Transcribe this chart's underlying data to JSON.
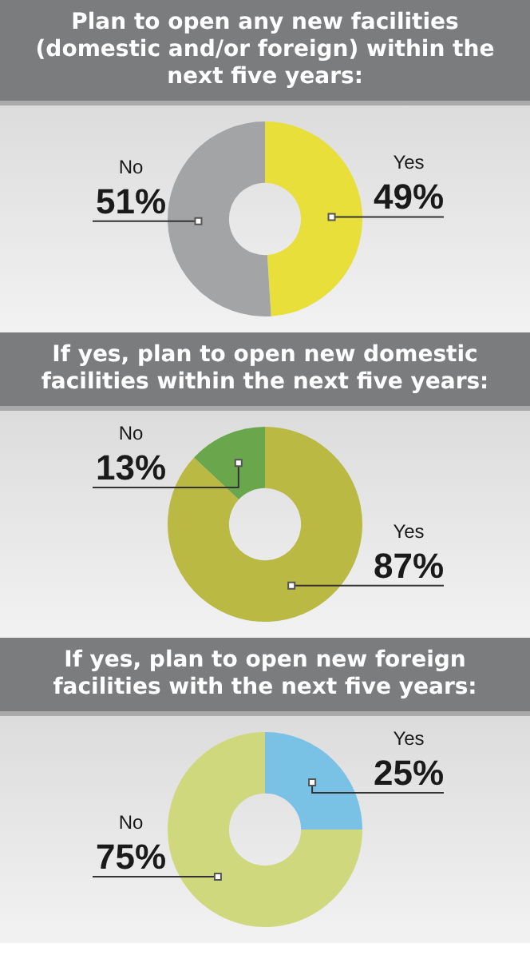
{
  "chart_data": [
    {
      "type": "donut",
      "title": "Plan to open any new facilities (domestic and/or foreign) within the next five years:",
      "categories": [
        "Yes",
        "No"
      ],
      "values": [
        49,
        51
      ],
      "colors": [
        "#e8df3a",
        "#a3a4a6"
      ],
      "value_labels": [
        "49%",
        "51%"
      ]
    },
    {
      "type": "donut",
      "title": "If yes, plan to open new domestic facilities within the next five years:",
      "categories": [
        "Yes",
        "No"
      ],
      "values": [
        87,
        13
      ],
      "colors": [
        "#b9b944",
        "#6aa74c"
      ],
      "value_labels": [
        "87%",
        "13%"
      ]
    },
    {
      "type": "donut",
      "title": "If yes, plan to open new foreign facilities with the next five years:",
      "categories": [
        "Yes",
        "No"
      ],
      "values": [
        25,
        75
      ],
      "colors": [
        "#79c2e6",
        "#cfd87c"
      ],
      "value_labels": [
        "25%",
        "75%"
      ]
    }
  ]
}
